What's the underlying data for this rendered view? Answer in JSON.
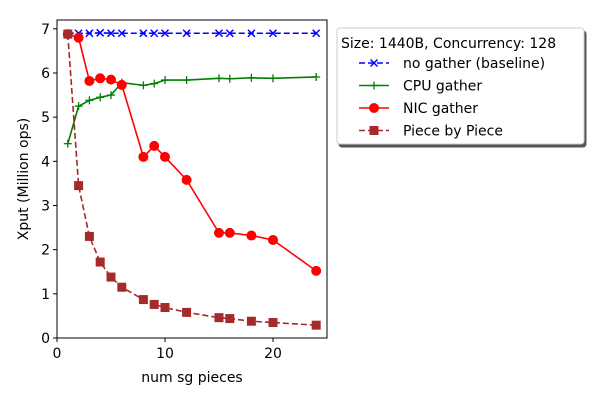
{
  "chart_data": {
    "type": "line",
    "title": "",
    "xlabel": "num sg pieces",
    "ylabel": "Xput (Million ops)",
    "xlim": [
      0,
      25
    ],
    "ylim": [
      0,
      7.2
    ],
    "xticks": [
      0,
      10,
      20
    ],
    "yticks": [
      0,
      1,
      2,
      3,
      4,
      5,
      6,
      7
    ],
    "grid": false,
    "legend": {
      "title": "Size: 1440B, Concurrency: 128",
      "placement": "outside-top-right"
    },
    "series": [
      {
        "name": "no gather (baseline)",
        "color": "#0000ff",
        "line_style": "dashed",
        "marker": "x",
        "x": [
          1,
          2,
          3,
          4,
          5,
          6,
          8,
          9,
          10,
          12,
          15,
          16,
          18,
          20,
          24
        ],
        "y": [
          6.9,
          6.9,
          6.9,
          6.91,
          6.9,
          6.9,
          6.9,
          6.9,
          6.9,
          6.9,
          6.9,
          6.9,
          6.9,
          6.9,
          6.9
        ]
      },
      {
        "name": "CPU gather",
        "color": "#008000",
        "line_style": "solid",
        "marker": "+",
        "x": [
          1,
          2,
          3,
          4,
          5,
          6,
          8,
          9,
          10,
          12,
          15,
          16,
          18,
          20,
          24
        ],
        "y": [
          4.4,
          5.25,
          5.38,
          5.45,
          5.5,
          5.78,
          5.72,
          5.76,
          5.84,
          5.84,
          5.88,
          5.87,
          5.89,
          5.88,
          5.91
        ]
      },
      {
        "name": "NIC gather",
        "color": "#ff0000",
        "line_style": "solid",
        "marker": "o",
        "x": [
          1,
          2,
          3,
          4,
          5,
          6,
          8,
          9,
          10,
          12,
          15,
          16,
          18,
          20,
          24
        ],
        "y": [
          6.88,
          6.8,
          5.82,
          5.88,
          5.85,
          5.73,
          4.1,
          4.35,
          4.1,
          3.58,
          2.38,
          2.38,
          2.32,
          2.22,
          1.52
        ]
      },
      {
        "name": "Piece by Piece",
        "color": "#a52a2a",
        "line_style": "dashed",
        "marker": "s",
        "x": [
          1,
          2,
          3,
          4,
          5,
          6,
          8,
          9,
          10,
          12,
          15,
          16,
          18,
          20,
          24
        ],
        "y": [
          6.88,
          3.45,
          2.3,
          1.72,
          1.38,
          1.15,
          0.87,
          0.76,
          0.69,
          0.58,
          0.46,
          0.44,
          0.38,
          0.35,
          0.29
        ]
      }
    ]
  }
}
